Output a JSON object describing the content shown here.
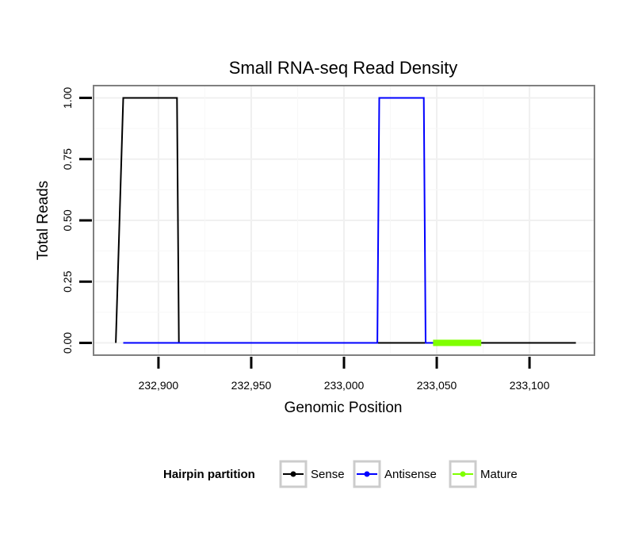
{
  "chart_data": {
    "type": "line",
    "title": "Small RNA-seq Read Density",
    "xlabel": "Genomic Position",
    "ylabel": "Total Reads",
    "xlim": [
      232865,
      233135
    ],
    "ylim": [
      -0.05,
      1.05
    ],
    "x_ticks": [
      {
        "value": 232900,
        "label": "232,900"
      },
      {
        "value": 232950,
        "label": "232,950"
      },
      {
        "value": 233000,
        "label": "233,000"
      },
      {
        "value": 233050,
        "label": "233,050"
      },
      {
        "value": 233100,
        "label": "233,100"
      }
    ],
    "y_ticks": [
      {
        "value": 0,
        "label": "0.00"
      },
      {
        "value": 0.25,
        "label": "0.25"
      },
      {
        "value": 0.5,
        "label": "0.50"
      },
      {
        "value": 0.75,
        "label": "0.75"
      },
      {
        "value": 1,
        "label": "1.00"
      }
    ],
    "grid": true,
    "legend": {
      "title": "Hairpin partition",
      "position": "bottom"
    },
    "series": [
      {
        "name": "Sense",
        "color": "#000000",
        "x": [
          232877,
          232881,
          232910,
          232911,
          233125
        ],
        "y": [
          0,
          1,
          1,
          0,
          0
        ]
      },
      {
        "name": "Antisense",
        "color": "#0000ff",
        "x": [
          232881,
          232911,
          233018,
          233019,
          233043,
          233044,
          233048
        ],
        "y": [
          0,
          0,
          0,
          1,
          1,
          0,
          0
        ]
      },
      {
        "name": "Mature",
        "color": "#7fff00",
        "x": [
          233048,
          233074
        ],
        "y": [
          0,
          0
        ]
      }
    ]
  }
}
